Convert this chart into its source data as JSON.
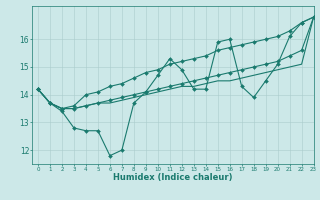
{
  "xlabel": "Humidex (Indice chaleur)",
  "background_color": "#cce8e8",
  "grid_color": "#aacccc",
  "line_color": "#1a7a6e",
  "xlim": [
    -0.5,
    23
  ],
  "ylim": [
    11.5,
    17.2
  ],
  "yticks": [
    12,
    13,
    14,
    15,
    16
  ],
  "xticks": [
    0,
    1,
    2,
    3,
    4,
    5,
    6,
    7,
    8,
    9,
    10,
    11,
    12,
    13,
    14,
    15,
    16,
    17,
    18,
    19,
    20,
    21,
    22,
    23
  ],
  "series": [
    {
      "y": [
        14.2,
        13.7,
        13.4,
        12.8,
        12.7,
        12.7,
        11.8,
        12.0,
        13.7,
        14.1,
        14.7,
        15.3,
        14.9,
        14.2,
        14.2,
        15.9,
        16.0,
        14.3,
        13.9,
        14.5,
        15.1,
        16.1,
        16.6,
        16.8
      ],
      "marker": "D",
      "markersize": 2.0,
      "linewidth": 0.8
    },
    {
      "y": [
        14.2,
        13.7,
        13.5,
        13.6,
        14.0,
        14.1,
        14.3,
        14.4,
        14.6,
        14.8,
        14.9,
        15.1,
        15.2,
        15.3,
        15.4,
        15.6,
        15.7,
        15.8,
        15.9,
        16.0,
        16.1,
        16.3,
        16.6,
        16.8
      ],
      "marker": "D",
      "markersize": 2.0,
      "linewidth": 0.8
    },
    {
      "y": [
        14.2,
        13.7,
        13.5,
        13.5,
        13.6,
        13.7,
        13.8,
        13.9,
        14.0,
        14.1,
        14.2,
        14.3,
        14.4,
        14.5,
        14.6,
        14.7,
        14.8,
        14.9,
        15.0,
        15.1,
        15.2,
        15.4,
        15.6,
        16.8
      ],
      "marker": "D",
      "markersize": 2.0,
      "linewidth": 0.8
    },
    {
      "y": [
        14.2,
        13.7,
        13.5,
        13.5,
        13.6,
        13.7,
        13.7,
        13.8,
        13.9,
        14.0,
        14.1,
        14.2,
        14.3,
        14.3,
        14.4,
        14.5,
        14.5,
        14.6,
        14.7,
        14.8,
        14.9,
        15.0,
        15.1,
        16.8
      ],
      "marker": null,
      "markersize": 0,
      "linewidth": 0.8
    }
  ]
}
